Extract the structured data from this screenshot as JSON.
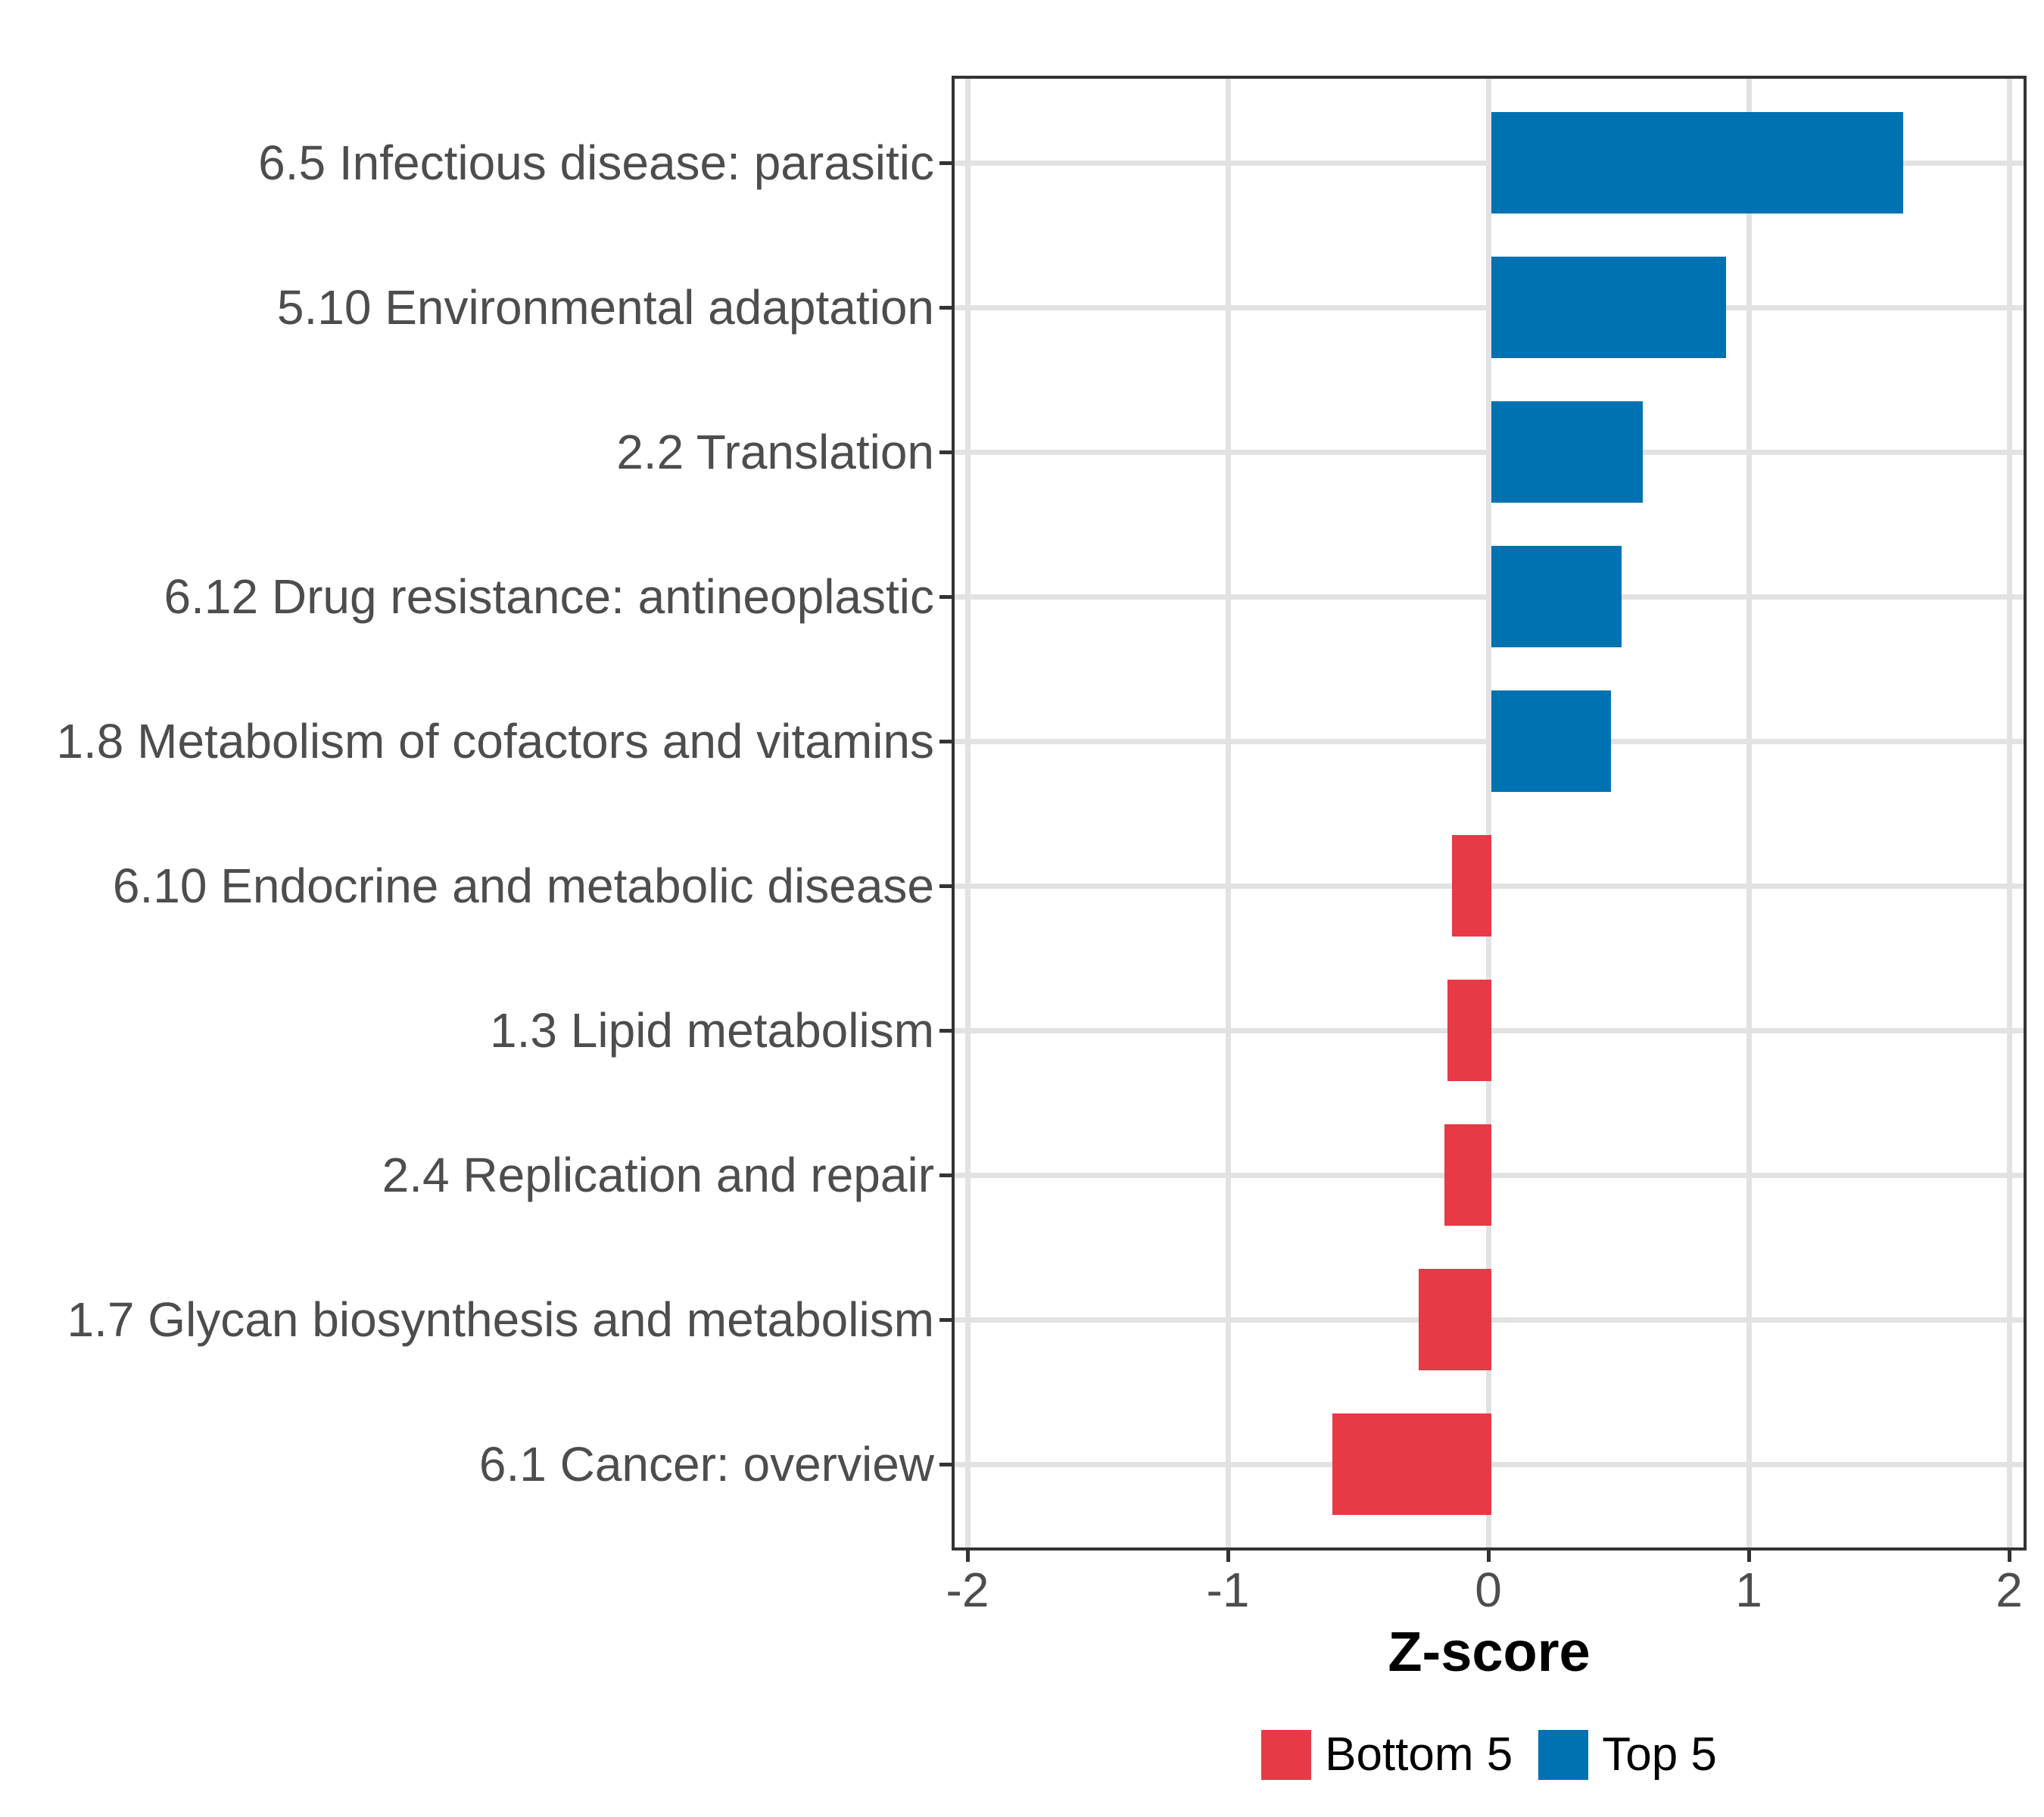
{
  "chart_data": {
    "type": "bar",
    "orientation": "horizontal",
    "title": "",
    "xlabel": "Z-score",
    "ylabel": "",
    "categories": [
      "6.5 Infectious disease: parasitic",
      "5.10 Environmental adaptation",
      "2.2 Translation",
      "6.12 Drug resistance: antineoplastic",
      "1.8 Metabolism of cofactors and vitamins",
      "6.10 Endocrine and metabolic disease",
      "1.3 Lipid metabolism",
      "2.4 Replication and repair",
      "1.7 Glycan biosynthesis and metabolism",
      "6.1 Cancer: overview"
    ],
    "values": [
      1.58,
      0.9,
      0.58,
      0.5,
      0.46,
      -0.15,
      -0.17,
      -0.18,
      -0.28,
      -0.61
    ],
    "groups": [
      "Top 5",
      "Top 5",
      "Top 5",
      "Top 5",
      "Top 5",
      "Bottom 5",
      "Bottom 5",
      "Bottom 5",
      "Bottom 5",
      "Bottom 5"
    ],
    "x_ticks": [
      -2,
      -1,
      0,
      1,
      2
    ],
    "x_tick_labels": [
      "-2",
      "-1",
      "0",
      "1",
      "2"
    ],
    "xlim": [
      -2.06,
      2.07
    ],
    "grid": true,
    "gridline_color": "#e2e2e2",
    "axis_text_color": "#4d4d4d",
    "legend": {
      "position": "bottom",
      "entries": [
        {
          "label": "Bottom 5",
          "color": "#e73946"
        },
        {
          "label": "Top 5",
          "color": "#0072b2"
        }
      ]
    }
  }
}
